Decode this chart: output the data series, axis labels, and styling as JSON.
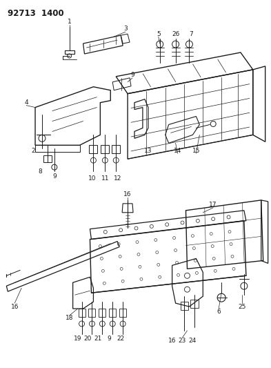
{
  "title_code": "92713 1400",
  "bg_color": "#ffffff",
  "line_color": "#1a1a1a",
  "fig_width": 3.93,
  "fig_height": 5.33,
  "dpi": 100
}
